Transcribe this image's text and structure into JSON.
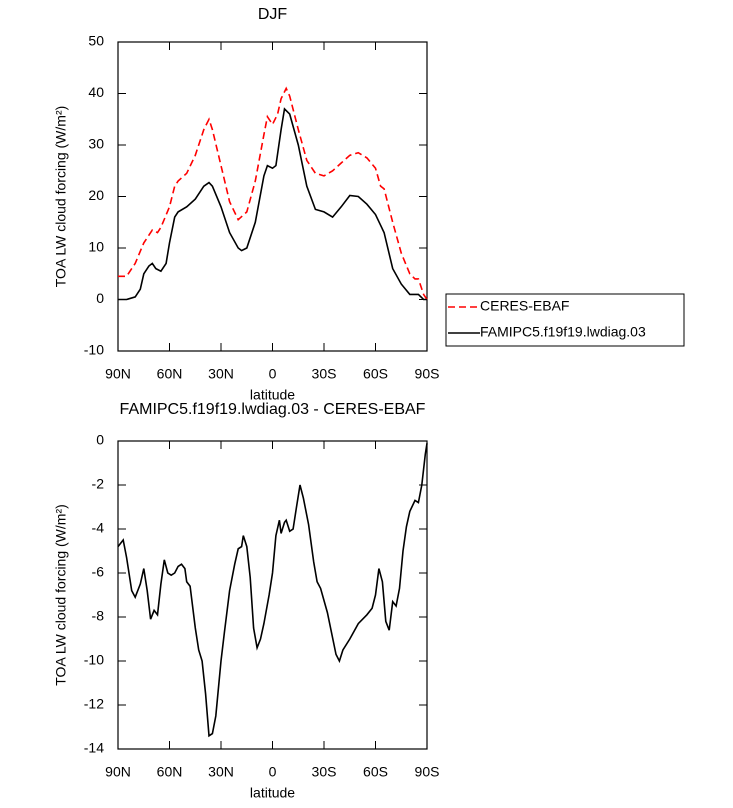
{
  "chart_data": [
    {
      "type": "line",
      "title": "DJF",
      "x_label": "latitude",
      "y_label": "TOA LW cloud forcing (W/m²)",
      "xlim": [
        90,
        -90
      ],
      "ylim": [
        -10,
        50
      ],
      "xticks": [
        {
          "value": 90,
          "label": "90N"
        },
        {
          "value": 60,
          "label": "60N"
        },
        {
          "value": 30,
          "label": "30N"
        },
        0,
        {
          "value": -30,
          "label": "30S"
        },
        {
          "value": -60,
          "label": "60S"
        },
        {
          "value": -90,
          "label": "90S"
        }
      ],
      "yticks": [
        -10,
        0,
        10,
        20,
        30,
        40,
        50
      ],
      "series": [
        {
          "name": "CERES-EBAF",
          "color": "#ff0000",
          "line_style": "dashed",
          "x": [
            90,
            85,
            80,
            75,
            70,
            67,
            65,
            60,
            57,
            55,
            50,
            45,
            40,
            37,
            35,
            30,
            25,
            20,
            15,
            10,
            5,
            3,
            0,
            -3,
            -5,
            -8,
            -10,
            -15,
            -20,
            -25,
            -30,
            -35,
            -40,
            -45,
            -50,
            -55,
            -60,
            -63,
            -65,
            -70,
            -75,
            -80,
            -83,
            -85,
            -88,
            -90
          ],
          "values": [
            4.5,
            4.5,
            7,
            11,
            13.5,
            13,
            14,
            18,
            22,
            23,
            24.5,
            28,
            33,
            35,
            33,
            26,
            19,
            15.5,
            17,
            23,
            32,
            35.5,
            34,
            36,
            39,
            41,
            39.5,
            33,
            27,
            24.5,
            24,
            25,
            26.5,
            28,
            28.5,
            27.5,
            25.5,
            22,
            21.5,
            15,
            9,
            5,
            4,
            4,
            1,
            0
          ]
        },
        {
          "name": "FAMIPC5.f19f19.lwdiag.03",
          "color": "#000000",
          "line_style": "solid",
          "x": [
            90,
            85,
            80,
            77,
            75,
            72,
            70,
            68,
            65,
            62,
            60,
            57,
            55,
            50,
            45,
            40,
            37,
            35,
            30,
            25,
            20,
            18,
            15,
            10,
            5,
            3,
            0,
            -2,
            -5,
            -7,
            -10,
            -15,
            -20,
            -25,
            -30,
            -35,
            -40,
            -45,
            -50,
            -55,
            -60,
            -65,
            -70,
            -75,
            -80,
            -85,
            -88,
            -90
          ],
          "values": [
            0,
            0,
            0.5,
            2,
            5,
            6.5,
            7,
            6,
            5.5,
            7,
            11,
            16,
            17,
            18,
            19.5,
            22,
            22.7,
            22,
            18,
            13,
            10,
            9.5,
            10,
            15,
            24,
            26,
            25.5,
            26,
            33,
            37,
            36,
            30,
            22,
            17.5,
            17,
            16,
            18,
            20.2,
            20,
            18.5,
            16.5,
            13,
            6,
            3,
            1,
            1,
            0,
            0
          ]
        }
      ]
    },
    {
      "type": "line",
      "title": "FAMIPC5.f19f19.lwdiag.03 - CERES-EBAF",
      "x_label": "latitude",
      "y_label": "TOA LW cloud forcing (W/m²)",
      "xlim": [
        90,
        -90
      ],
      "ylim": [
        -14,
        0
      ],
      "xticks": [
        {
          "value": 90,
          "label": "90N"
        },
        {
          "value": 60,
          "label": "60N"
        },
        {
          "value": 30,
          "label": "30N"
        },
        0,
        {
          "value": -30,
          "label": "30S"
        },
        {
          "value": -60,
          "label": "60S"
        },
        {
          "value": -90,
          "label": "90S"
        }
      ],
      "yticks": [
        -14,
        -12,
        -10,
        -8,
        -6,
        -4,
        -2,
        0
      ],
      "color": "#000000",
      "x": [
        90,
        87,
        85,
        82,
        80,
        77,
        75,
        73,
        71,
        69,
        67,
        65,
        63,
        61,
        59,
        57,
        55,
        53,
        51,
        50,
        48,
        45,
        43,
        41,
        39,
        37,
        35,
        33,
        30,
        28,
        25,
        22,
        20,
        18,
        17,
        15,
        13,
        11,
        9,
        7,
        5,
        2,
        0,
        -2,
        -4,
        -5,
        -7,
        -8,
        -10,
        -12,
        -14,
        -16,
        -18,
        -21,
        -24,
        -26,
        -28,
        -32,
        -37,
        -39,
        -41,
        -45,
        -50,
        -55,
        -58,
        -60,
        -62,
        -64,
        -66,
        -68,
        -70,
        -72,
        -74,
        -76,
        -78,
        -80,
        -83,
        -85,
        -87,
        -89,
        -90
      ],
      "values": [
        -4.8,
        -4.5,
        -5.3,
        -6.8,
        -7.1,
        -6.5,
        -5.8,
        -6.8,
        -8.1,
        -7.7,
        -7.9,
        -6.5,
        -5.4,
        -6.0,
        -6.1,
        -6.0,
        -5.7,
        -5.6,
        -5.8,
        -6.4,
        -6.6,
        -8.5,
        -9.5,
        -10.0,
        -11.5,
        -13.4,
        -13.3,
        -12.5,
        -10,
        -8.7,
        -6.8,
        -5.6,
        -4.9,
        -4.8,
        -4.3,
        -4.8,
        -6.2,
        -8.5,
        -9.4,
        -9.0,
        -8.3,
        -7.0,
        -6.0,
        -4.3,
        -3.6,
        -4.2,
        -3.7,
        -3.6,
        -4.1,
        -4.0,
        -3.0,
        -2.0,
        -2.6,
        -3.8,
        -5.5,
        -6.4,
        -6.7,
        -7.8,
        -9.7,
        -10.0,
        -9.5,
        -9.0,
        -8.3,
        -7.9,
        -7.6,
        -7.0,
        -5.8,
        -6.4,
        -8.2,
        -8.6,
        -7.3,
        -7.5,
        -6.7,
        -5.0,
        -3.9,
        -3.2,
        -2.7,
        -2.8,
        -2.0,
        -0.6,
        -0.1
      ]
    }
  ]
}
